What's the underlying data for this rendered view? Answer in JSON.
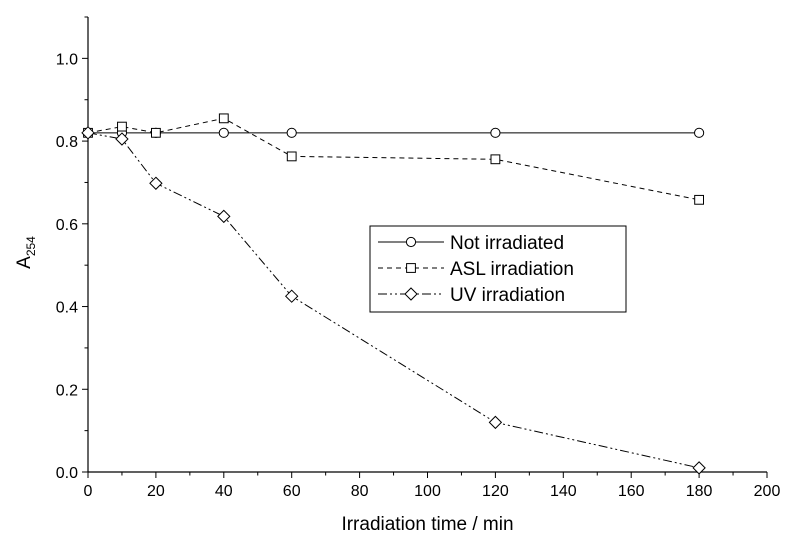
{
  "chart_data": {
    "type": "line",
    "title": "",
    "xlabel": "Irradiation time / min",
    "ylabel": "A",
    "ylabel_subscript": "254",
    "xlim": [
      0,
      200
    ],
    "ylim": [
      0.0,
      1.1
    ],
    "xticks": [
      "0",
      "20",
      "40",
      "60",
      "80",
      "100",
      "120",
      "140",
      "160",
      "180",
      "200"
    ],
    "yticks": [
      "0.0",
      "0.2",
      "0.4",
      "0.6",
      "0.8",
      "1.0"
    ],
    "grid": false,
    "legend_position": "center-right",
    "series": [
      {
        "name": "Not irradiated",
        "line_style": "solid",
        "marker": "circle",
        "x": [
          0,
          10,
          20,
          40,
          60,
          120,
          180
        ],
        "y": [
          0.82,
          0.82,
          0.82,
          0.82,
          0.82,
          0.82,
          0.82
        ]
      },
      {
        "name": "ASL irradiation",
        "line_style": "dashed",
        "marker": "square",
        "x": [
          0,
          10,
          20,
          40,
          60,
          120,
          180
        ],
        "y": [
          0.82,
          0.835,
          0.82,
          0.855,
          0.763,
          0.756,
          0.658
        ]
      },
      {
        "name": "UV irradiation",
        "line_style": "dash-dot-dot",
        "marker": "diamond",
        "x": [
          0,
          10,
          20,
          40,
          60,
          120,
          180
        ],
        "y": [
          0.82,
          0.805,
          0.698,
          0.618,
          0.425,
          0.12,
          0.01
        ]
      }
    ]
  }
}
